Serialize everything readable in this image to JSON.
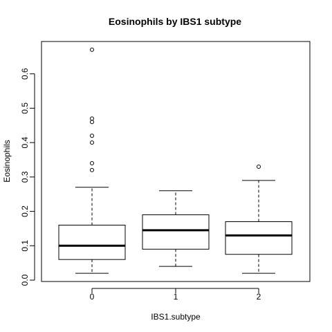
{
  "chart_data": {
    "type": "boxplot",
    "title": "Eosinophils by IBS1 subtype",
    "xlabel": "IBS1.subtype",
    "ylabel": "Eosinophils",
    "ylim": [
      -0.004,
      0.694
    ],
    "y_ticks": [
      "0.0",
      "0.1",
      "0.2",
      "0.3",
      "0.4",
      "0.5",
      "0.6"
    ],
    "y_tick_values": [
      0,
      0.1,
      0.2,
      0.3,
      0.4,
      0.5,
      0.6
    ],
    "categories": [
      "0",
      "1",
      "2"
    ],
    "boxes": [
      {
        "category": "0",
        "lower_whisker": 0.02,
        "q1": 0.06,
        "median": 0.1,
        "q3": 0.16,
        "upper_whisker": 0.27,
        "outliers": [
          0.32,
          0.34,
          0.4,
          0.42,
          0.46,
          0.47,
          0.67
        ]
      },
      {
        "category": "1",
        "lower_whisker": 0.04,
        "q1": 0.09,
        "median": 0.145,
        "q3": 0.19,
        "upper_whisker": 0.26,
        "outliers": []
      },
      {
        "category": "2",
        "lower_whisker": 0.02,
        "q1": 0.075,
        "median": 0.13,
        "q3": 0.17,
        "upper_whisker": 0.29,
        "outliers": [
          0.33
        ]
      }
    ],
    "grid": false,
    "legend": "none"
  }
}
